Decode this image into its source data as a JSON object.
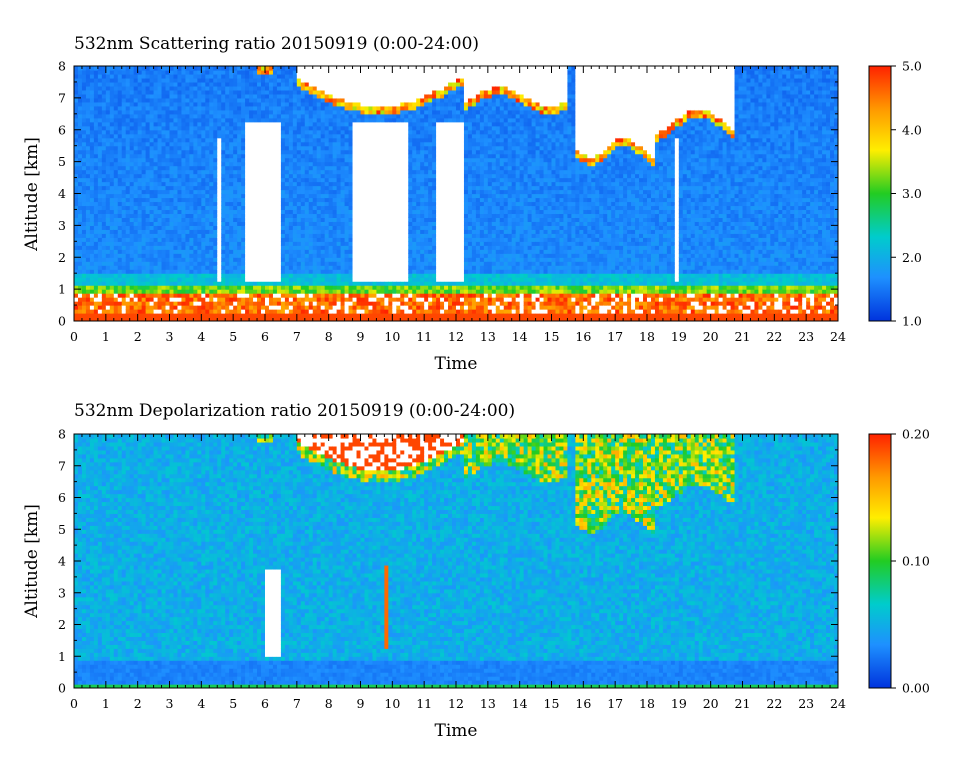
{
  "chart_data": [
    {
      "type": "heatmap",
      "title": "532nm Scattering ratio  20150919 (0:00-24:00)",
      "xlabel": "Time",
      "ylabel": "Altitude [km]",
      "xlim": [
        0,
        24
      ],
      "ylim": [
        0,
        8
      ],
      "x_ticks": [
        "0",
        "1",
        "2",
        "3",
        "4",
        "5",
        "6",
        "7",
        "8",
        "9",
        "10",
        "11",
        "12",
        "13",
        "14",
        "15",
        "16",
        "17",
        "18",
        "19",
        "20",
        "21",
        "22",
        "23",
        "24"
      ],
      "y_ticks": [
        "0",
        "1",
        "2",
        "3",
        "4",
        "5",
        "6",
        "7",
        "8"
      ],
      "colorbar": {
        "range": [
          1.0,
          5.0
        ],
        "ticks": [
          "1.0",
          "2.0",
          "3.0",
          "4.0",
          "5.0"
        ],
        "colors": [
          "#0033dd",
          "#1e90ff",
          "#00cccc",
          "#22cc22",
          "#ffee00",
          "#ff9900",
          "#ff2200"
        ]
      },
      "features": {
        "boundary_layer_top_km": 1.0,
        "high_cloud_base_km": 6.2,
        "opaque_cloud_intervals_h": [
          [
            5.4,
            6.5
          ],
          [
            8.7,
            10.5
          ],
          [
            11.4,
            12.3
          ]
        ]
      }
    },
    {
      "type": "heatmap",
      "title": "532nm Depolarization ratio  20150919 (0:00-24:00)",
      "xlabel": "Time",
      "ylabel": "Altitude [km]",
      "xlim": [
        0,
        24
      ],
      "ylim": [
        0,
        8
      ],
      "x_ticks": [
        "0",
        "1",
        "2",
        "3",
        "4",
        "5",
        "6",
        "7",
        "8",
        "9",
        "10",
        "11",
        "12",
        "13",
        "14",
        "15",
        "16",
        "17",
        "18",
        "19",
        "20",
        "21",
        "22",
        "23",
        "24"
      ],
      "y_ticks": [
        "0",
        "1",
        "2",
        "3",
        "4",
        "5",
        "6",
        "7",
        "8"
      ],
      "colorbar": {
        "range": [
          0.0,
          0.2
        ],
        "ticks": [
          "0.00",
          "0.10",
          "0.20"
        ],
        "colors": [
          "#0033dd",
          "#1e90ff",
          "#00cccc",
          "#22cc22",
          "#ffee00",
          "#ff9900",
          "#ff2200"
        ]
      }
    }
  ]
}
